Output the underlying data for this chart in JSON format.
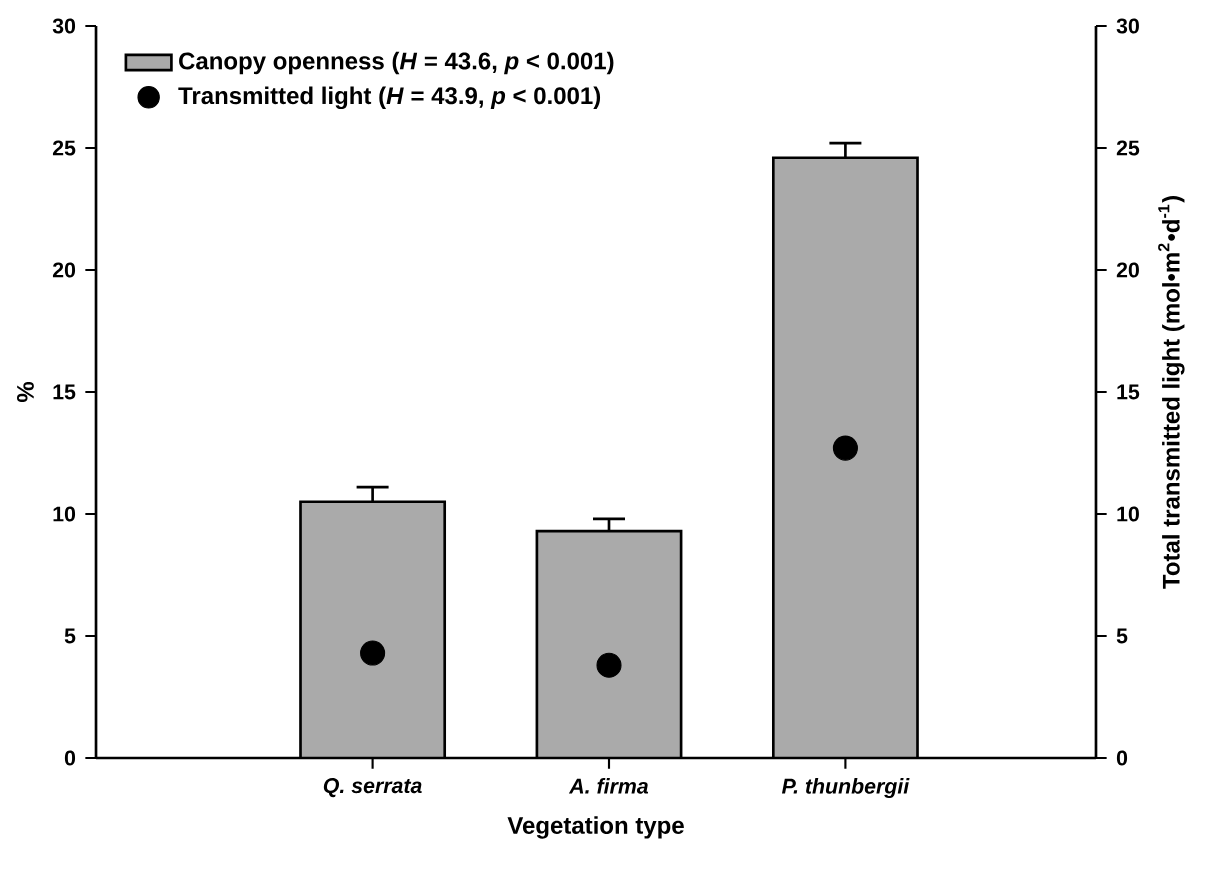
{
  "chart_data": {
    "type": "bar",
    "xlabel": "Vegetation type",
    "ylabel": "%",
    "y2label": "Total transmitted light (mol•m$^{2}$•d$^{-1}$)",
    "categories": [
      "Q. serrata",
      "A. firma",
      "P. thunbergii"
    ],
    "series": [
      {
        "name": "Canopy openness (*H* = 43.6, *p* < 0.001)",
        "color": "#aaaaaa",
        "values": [
          10.5,
          9.3,
          24.6
        ],
        "errors": [
          [
            10.5,
            11.1
          ],
          [
            9.3,
            9.8
          ],
          [
            24.6,
            25.2
          ]
        ]
      },
      {
        "name": "Transmitted light (*H* = 43.9, *p* < 0.001)",
        "type": "scatter",
        "axis": "y2",
        "color": "#000000",
        "values": [
          4.3,
          3.8,
          12.7
        ]
      }
    ],
    "ylim": [
      0,
      30
    ],
    "yticks": [
      0,
      5,
      10,
      15,
      20,
      25,
      30
    ],
    "y2lim": [
      0,
      30
    ],
    "y2ticks": [
      0,
      5,
      10,
      15,
      20,
      25,
      30
    ],
    "grid": false,
    "legend": "top left"
  }
}
